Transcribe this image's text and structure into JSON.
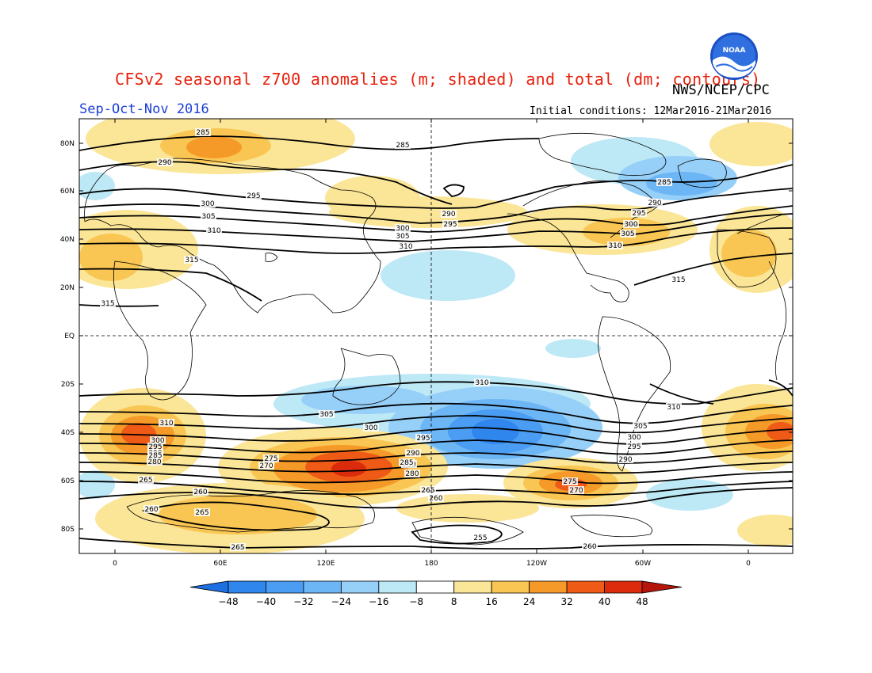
{
  "header": {
    "title": "CFSv2 seasonal z700 anomalies (m; shaded) and total (dm; contours)",
    "agency": "NWS/NCEP/CPC",
    "season": "Sep-Oct-Nov 2016",
    "initial_conditions": "Initial conditions: 12Mar2016-21Mar2016",
    "logo_text": "NOAA"
  },
  "chart_data": {
    "type": "heatmap",
    "title": "CFSv2 seasonal z700 anomalies (m; shaded) and total (dm; contours)",
    "x_ticks": [
      "0",
      "60E",
      "120E",
      "180",
      "120W",
      "60W",
      "0"
    ],
    "y_ticks": [
      "80N",
      "60N",
      "40N",
      "20N",
      "EQ",
      "20S",
      "40S",
      "60S",
      "80S"
    ],
    "colorbar": {
      "ticks": [
        "-48",
        "-40",
        "-32",
        "-24",
        "-16",
        "-8",
        "8",
        "16",
        "24",
        "32",
        "40",
        "48"
      ],
      "colors": [
        "#1e6fe0",
        "#2f86ec",
        "#4a9df2",
        "#6db6f6",
        "#96cff8",
        "#bde8f6",
        "#ffffff",
        "#fbe596",
        "#f9c653",
        "#f59a28",
        "#ef5a16",
        "#db2a0c",
        "#b5150a"
      ]
    },
    "anomalies": [
      {
        "lon": 30,
        "lat": 80,
        "value": 24
      },
      {
        "lon": 140,
        "lat": 40,
        "value": 16
      },
      {
        "lon": 170,
        "lat": 35,
        "value": 16
      },
      {
        "lon": -70,
        "lat": 75,
        "value": -16
      },
      {
        "lon": -40,
        "lat": 65,
        "value": -24
      },
      {
        "lon": -70,
        "lat": 45,
        "value": 24
      },
      {
        "lon": 0,
        "lat": 40,
        "value": 24
      },
      {
        "lon": 180,
        "lat": 20,
        "value": -16
      },
      {
        "lon": -170,
        "lat": -10,
        "value": -16
      },
      {
        "lon": 120,
        "lat": -25,
        "value": -24
      },
      {
        "lon": -155,
        "lat": -35,
        "value": -40
      },
      {
        "lon": 15,
        "lat": -40,
        "value": 32
      },
      {
        "lon": 130,
        "lat": -55,
        "value": 40
      },
      {
        "lon": -100,
        "lat": -60,
        "value": 32
      },
      {
        "lon": -20,
        "lat": -40,
        "value": 32
      },
      {
        "lon": 90,
        "lat": -70,
        "value": 24
      }
    ],
    "contour_labels": [
      "285",
      "285",
      "290",
      "295",
      "300",
      "305",
      "310",
      "315",
      "315",
      "285",
      "290",
      "295",
      "300",
      "305",
      "310",
      "290",
      "295",
      "300",
      "305",
      "310",
      "315",
      "310",
      "310",
      "305",
      "300",
      "295",
      "290",
      "280",
      "275",
      "270",
      "265",
      "260",
      "265",
      "260",
      "255",
      "260",
      "275",
      "270",
      "280",
      "285",
      "290",
      "295",
      "300",
      "305",
      "310",
      "300",
      "295",
      "290",
      "285",
      "280",
      "265",
      "260",
      "265"
    ]
  }
}
